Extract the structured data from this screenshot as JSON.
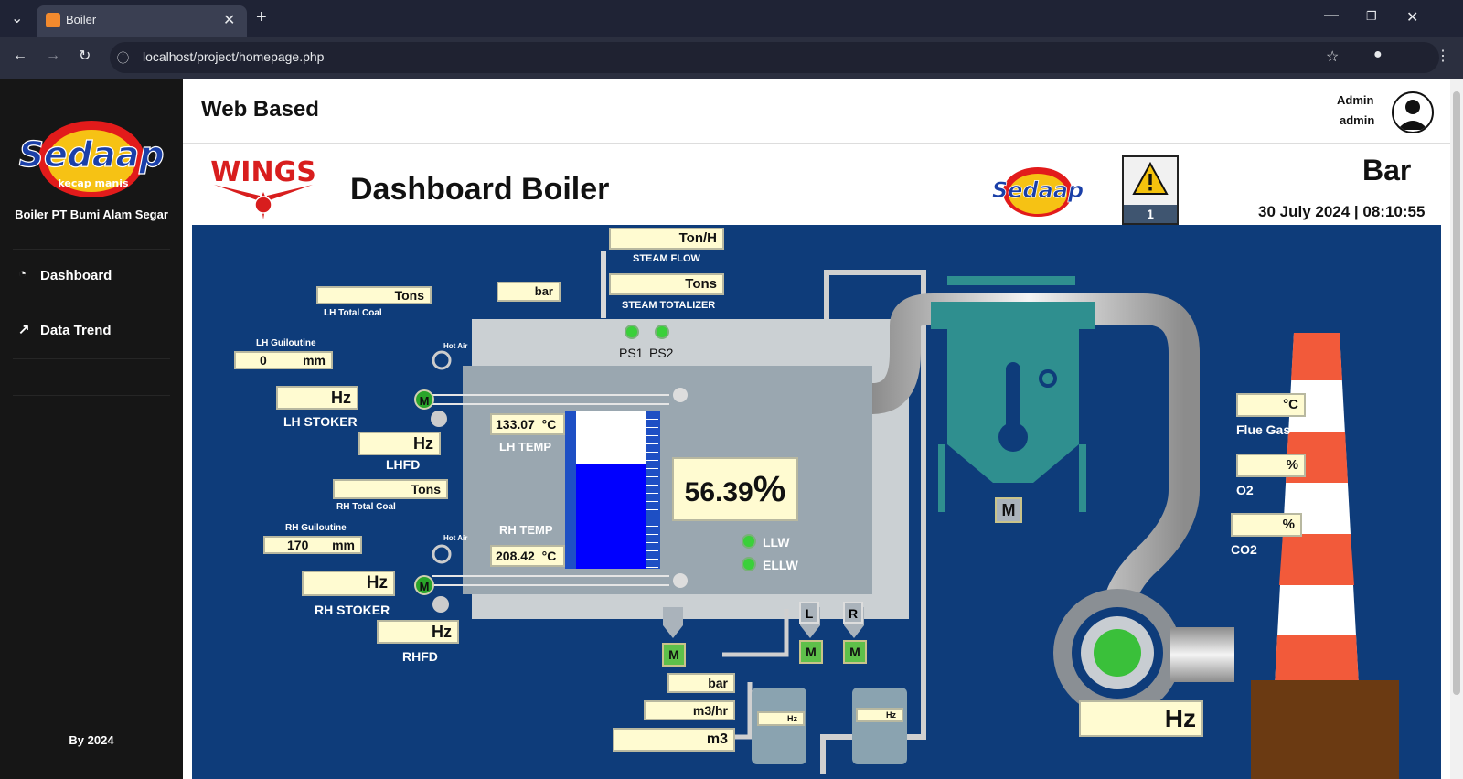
{
  "browser": {
    "tab_title": "Boiler",
    "url": "localhost/project/homepage.php"
  },
  "sidebar": {
    "brand": "Sedaap",
    "brand_sub": "kecap manis",
    "company": "Boiler PT Bumi Alam Segar",
    "items": [
      {
        "label": "Dashboard",
        "icon": "gauge-icon"
      },
      {
        "label": "Data Trend",
        "icon": "chart-line-icon"
      }
    ],
    "footer": "By 2024"
  },
  "header": {
    "title": "Web Based",
    "user_name": "Admin",
    "user_role": "admin"
  },
  "dashboard": {
    "wings_logo": "WINGS",
    "title": "Dashboard Boiler",
    "alarm_count": "1",
    "unit": "Bar",
    "datetime": "30 July 2024 | 08:10:55"
  },
  "plant": {
    "steam_flow": {
      "unit": "Ton/H",
      "label": "STEAM FLOW"
    },
    "steam_totalizer": {
      "unit": "Tons",
      "label": "STEAM TOTALIZER"
    },
    "drum_pressure": {
      "unit": "bar"
    },
    "ps1": "PS1",
    "ps2": "PS2",
    "lh_total_coal": {
      "unit": "Tons",
      "label": "LH Total Coal"
    },
    "lh_guillotine": {
      "label": "LH Guiloutine",
      "value": "0",
      "unit": "mm"
    },
    "hot_air_1": "Hot Air",
    "hot_air_2": "Hot Air",
    "lh_stoker": {
      "unit": "Hz",
      "label": "LH STOKER"
    },
    "lhfd": {
      "unit": "Hz",
      "label": "LHFD"
    },
    "rh_total_coal": {
      "unit": "Tons",
      "label": "RH Total Coal"
    },
    "rh_guillotine": {
      "label": "RH Guiloutine",
      "value": "170",
      "unit": "mm"
    },
    "rh_stoker": {
      "unit": "Hz",
      "label": "RH STOKER"
    },
    "rhfd": {
      "unit": "Hz",
      "label": "RHFD"
    },
    "lh_temp": {
      "value": "133.07",
      "unit": "°C",
      "label": "LH TEMP"
    },
    "rh_temp": {
      "value": "208.42",
      "unit": "°C",
      "label": "RH TEMP"
    },
    "level": {
      "value": "56.39",
      "unit": "%",
      "fill_fraction": 0.66
    },
    "llw": "LLW",
    "ellw": "ELLW",
    "motor": "M",
    "l_tag": "L",
    "r_tag": "R",
    "water_pressure": {
      "unit": "bar"
    },
    "water_flow": {
      "unit": "m3/hr"
    },
    "water_total": {
      "unit": "m3"
    },
    "pump1_hz": "Hz",
    "pump2_hz": "Hz",
    "flue_gas": {
      "unit": "°C",
      "label": "Flue Gas"
    },
    "o2": {
      "unit": "%",
      "label": "O2"
    },
    "co2": {
      "unit": "%",
      "label": "CO2"
    },
    "idf_hz": {
      "unit": "Hz"
    }
  },
  "colors": {
    "panel": "#0e3c7a",
    "field_bg": "#fffbd1",
    "led_on": "#3ad03a",
    "level_fill": "#0000ff",
    "stack_red": "#f25a3a"
  }
}
